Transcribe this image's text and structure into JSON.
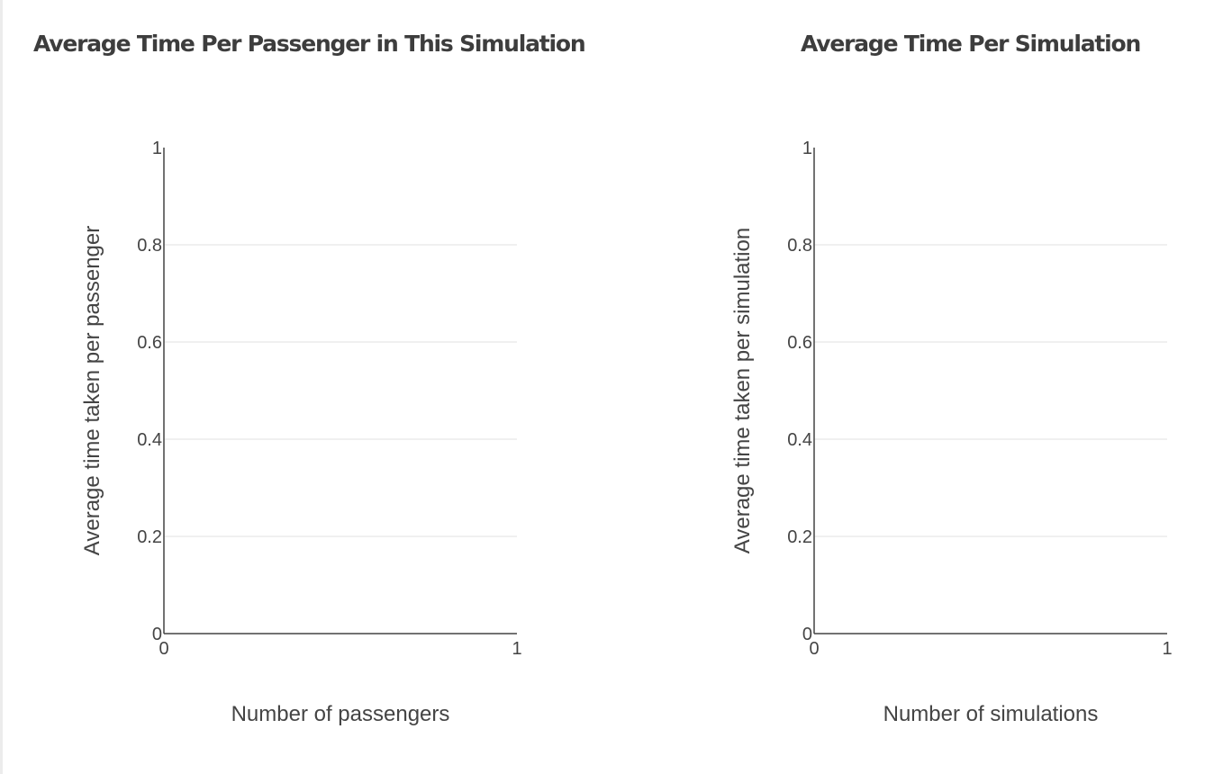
{
  "chart_data": [
    {
      "type": "line",
      "title": "Average Time Per Passenger in This Simulation",
      "xlabel": "Number of passengers",
      "ylabel": "Average time taken per passenger",
      "xlim": [
        0,
        1
      ],
      "ylim": [
        0,
        1
      ],
      "x_ticks": [
        "0",
        "1"
      ],
      "y_ticks": [
        "0",
        "0.2",
        "0.4",
        "0.6",
        "0.8",
        "1"
      ],
      "grid": true,
      "series": []
    },
    {
      "type": "line",
      "title": "Average Time Per Simulation",
      "xlabel": "Number of simulations",
      "ylabel": "Average time taken per simulation",
      "xlim": [
        0,
        1
      ],
      "ylim": [
        0,
        1
      ],
      "x_ticks": [
        "0",
        "1"
      ],
      "y_ticks": [
        "0",
        "0.2",
        "0.4",
        "0.6",
        "0.8",
        "1"
      ],
      "grid": true,
      "series": []
    }
  ]
}
